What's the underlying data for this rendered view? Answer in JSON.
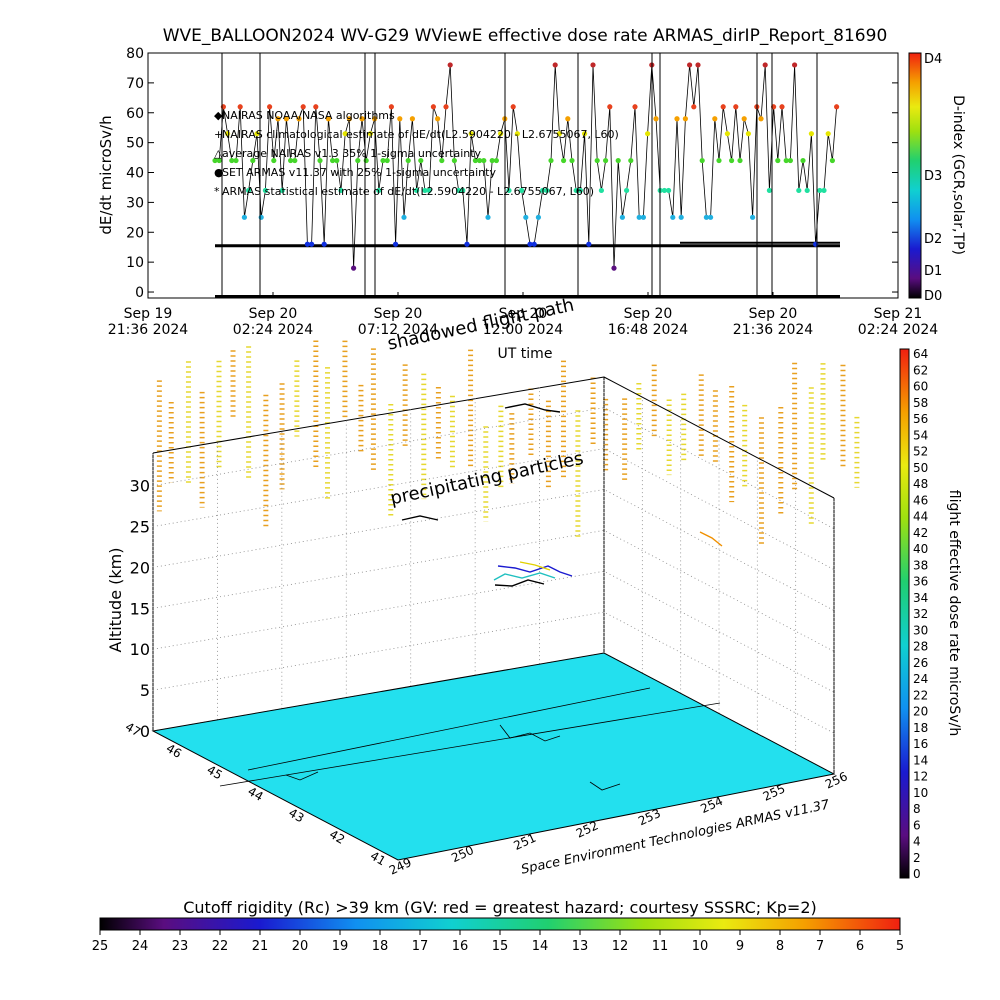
{
  "chart_data": [
    {
      "type": "scatter",
      "title": "WVE_BALLOON2024 WV-G29 WViewE effective dose rate ARMAS_dirIP_Report_81690",
      "ylabel": "dE/dt microSv/h",
      "xlabel": "UT time",
      "ylim": [
        -2,
        80
      ],
      "yticks": [
        "0",
        "10",
        "20",
        "30",
        "40",
        "50",
        "60",
        "70",
        "80"
      ],
      "xticks": [
        {
          "l1": "Sep 19",
          "l2": "21:36 2024"
        },
        {
          "l1": "Sep 20",
          "l2": "02:24 2024"
        },
        {
          "l1": "Sep 20",
          "l2": "07:12 2024"
        },
        {
          "l1": "Sep 20",
          "l2": "12:00 2024"
        },
        {
          "l1": "Sep 20",
          "l2": "16:48 2024"
        },
        {
          "l1": "Sep 20",
          "l2": "21:36 2024"
        },
        {
          "l1": "Sep 21",
          "l2": "02:24 2024"
        }
      ],
      "legend": [
        "NAIRAS NOAA/NASA algorithms",
        "NAIRAS climatological estimate of dE/dt(L2.5904220 - L2.6755067, L60)",
        "average NAIRAS v1.3 35% 1-sigma uncertainty",
        "SET ARMAS v11.37 with 25% 1-sigma uncertainty",
        "ARMAS statistical estimate of dE/dt(L2.5904220 - L2.6755067, L60)"
      ],
      "series_levels": [
        {
          "name": "D4 level",
          "value": 76,
          "color": "#c0282a"
        },
        {
          "name": "red level",
          "value": 62,
          "color": "#e8421e"
        },
        {
          "name": "orange level",
          "value": 58,
          "color": "#f5a000"
        },
        {
          "name": "yellow level",
          "value": 53,
          "color": "#e6e600"
        },
        {
          "name": "green level",
          "value": 44,
          "color": "#45d62a"
        },
        {
          "name": "cyan-green level",
          "value": 34,
          "color": "#20e0a0"
        },
        {
          "name": "cyan level",
          "value": 25,
          "color": "#20b0e0"
        },
        {
          "name": "blue level",
          "value": 16,
          "color": "#1030e0"
        },
        {
          "name": "purple level",
          "value": 8,
          "color": "#5a1080"
        }
      ],
      "colorbar": {
        "label": "D-index (GCR,solar,TP)",
        "ticks": [
          "D4",
          "D3",
          "D2",
          "D1",
          "D0"
        ]
      }
    },
    {
      "type": "scatter",
      "ylabel": "Altitude (km)",
      "zticks": [
        "0",
        "5",
        "10",
        "15",
        "20",
        "25",
        "30"
      ],
      "lon_ticks": [
        "249",
        "250",
        "251",
        "252",
        "253",
        "254",
        "255",
        "256"
      ],
      "lat_ticks": [
        "41",
        "42",
        "43",
        "44",
        "45",
        "46",
        "47"
      ],
      "annotations": [
        "shadowed flight path",
        "precipitating particles",
        "Space Environment Technologies ARMAS v11.37"
      ],
      "colorbar": {
        "label": "flight effective dose rate microSv/h",
        "ticks": [
          "0",
          "2",
          "4",
          "6",
          "8",
          "10",
          "12",
          "14",
          "16",
          "18",
          "20",
          "22",
          "24",
          "26",
          "28",
          "30",
          "32",
          "34",
          "36",
          "38",
          "40",
          "42",
          "44",
          "46",
          "48",
          "50",
          "52",
          "54",
          "56",
          "58",
          "60",
          "62",
          "64"
        ]
      }
    },
    {
      "type": "heatmap",
      "label": "Cutoff rigidity (Rc) >39 km (GV: red = greatest hazard; courtesy SSSRC; Kp=2)",
      "ticks": [
        "25",
        "24",
        "23",
        "22",
        "21",
        "20",
        "19",
        "18",
        "17",
        "16",
        "15",
        "14",
        "13",
        "12",
        "11",
        "10",
        "9",
        "8",
        "7",
        "6",
        "5"
      ]
    }
  ]
}
